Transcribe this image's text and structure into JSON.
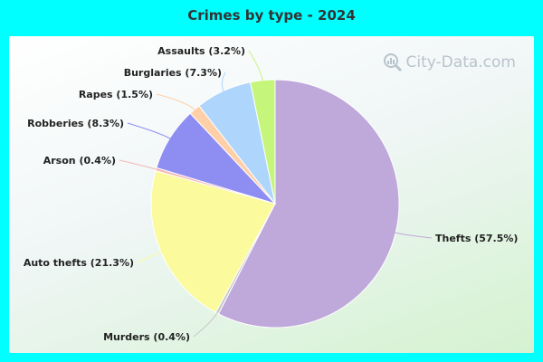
{
  "title": "Crimes by type - 2024",
  "watermark": {
    "text": "City-Data.com",
    "icon": "magnifier-bar-chart-icon"
  },
  "chart_data": {
    "type": "pie",
    "title": "Crimes by type - 2024",
    "start_angle_deg": 0,
    "direction": "clockwise",
    "legend": "none",
    "slices": [
      {
        "name": "Thefts",
        "label": "Thefts (57.5%)",
        "value": 57.5,
        "color": "#bfa8da"
      },
      {
        "name": "Murders",
        "label": "Murders (0.4%)",
        "value": 0.4,
        "color": "#c8c8c8"
      },
      {
        "name": "Auto thefts",
        "label": "Auto thefts (21.3%)",
        "value": 21.3,
        "color": "#fbfa9c"
      },
      {
        "name": "Arson",
        "label": "Arson (0.4%)",
        "value": 0.4,
        "color": "#f5b7b7"
      },
      {
        "name": "Robberies",
        "label": "Robberies (8.3%)",
        "value": 8.3,
        "color": "#8e8ef2"
      },
      {
        "name": "Rapes",
        "label": "Rapes (1.5%)",
        "value": 1.5,
        "color": "#ffcfa8"
      },
      {
        "name": "Burglaries",
        "label": "Burglaries (7.3%)",
        "value": 7.3,
        "color": "#aed5fb"
      },
      {
        "name": "Assaults",
        "label": "Assaults (3.2%)",
        "value": 3.2,
        "color": "#c6f57c"
      }
    ]
  }
}
